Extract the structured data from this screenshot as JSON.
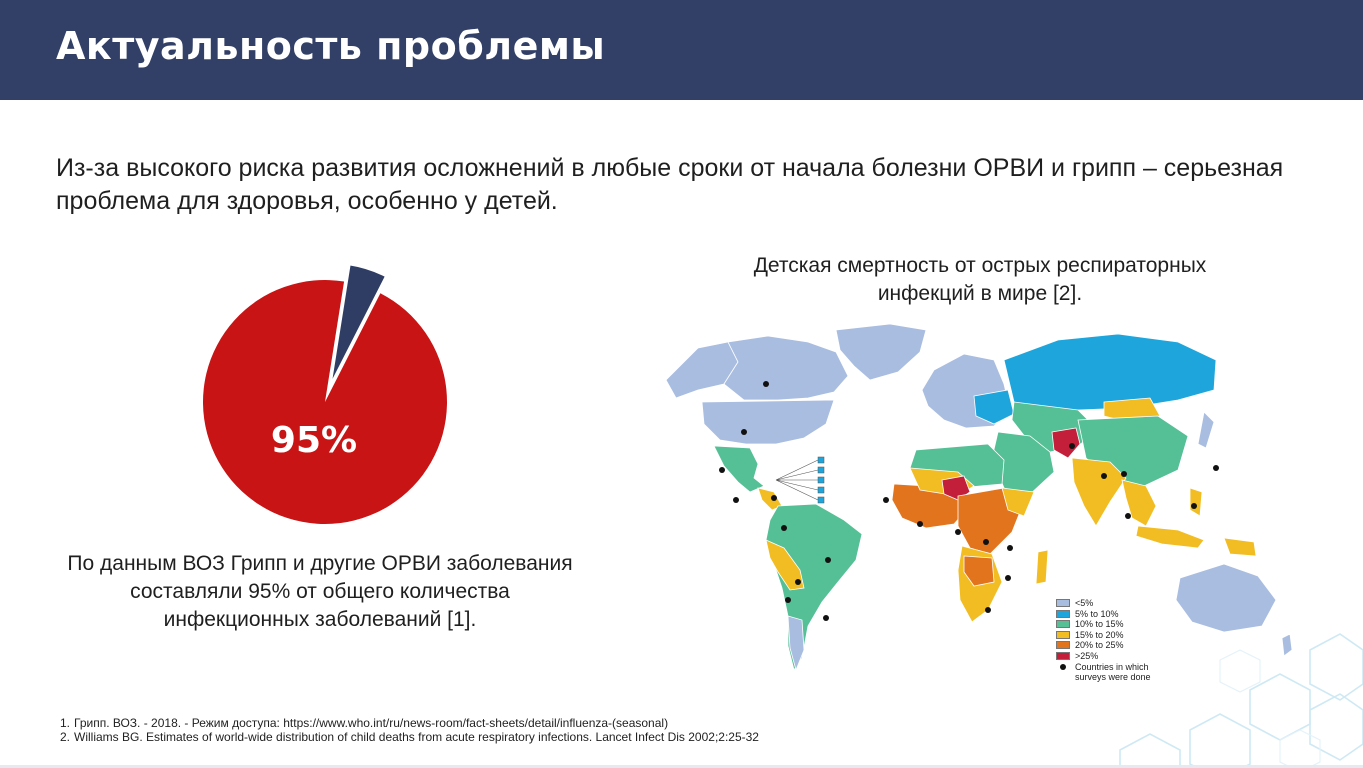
{
  "header": {
    "title": "Актуальность проблемы"
  },
  "intro": {
    "text": "Из-за высокого риска развития осложнений в любые сроки от начала болезни ОРВИ и грипп – серьезная проблема для здоровья, особенно у детей."
  },
  "pie": {
    "value_label": "95%",
    "main_percent": 95,
    "main_color": "#c81414",
    "slice_color": "#2f3d64",
    "caption": "По данным ВОЗ Грипп и другие ОРВИ заболевания составляли 95% от общего количества инфекционных заболеваний [1]."
  },
  "map": {
    "title": "Детская смертность от острых респираторных инфекций в мире [2].",
    "legend": [
      {
        "label": "<5%",
        "color": "#a9bde0"
      },
      {
        "label": "5% to 10%",
        "color": "#1ea6dc"
      },
      {
        "label": "10% to 15%",
        "color": "#55bf95"
      },
      {
        "label": "15% to 20%",
        "color": "#f2bd22"
      },
      {
        "label": "20% to 25%",
        "color": "#e2741e"
      },
      {
        "label": ">25%",
        "color": "#c41f3a"
      }
    ],
    "dot_label": "Countries in which surveys were done"
  },
  "references": [
    {
      "num": "1.",
      "text": "Грипп.  ВОЗ. - 2018. - Режим доступа: https://www.who.int/ru/news-room/fact-sheets/detail/influenza-(seasonal)"
    },
    {
      "num": "2.",
      "text": "Williams BG.  Estimates of world-wide distribution of child deaths from acute respiratory infections.  Lancet Infect Dis 2002;2:25-32"
    }
  ],
  "colors": {
    "header_bg": "#323f66"
  }
}
